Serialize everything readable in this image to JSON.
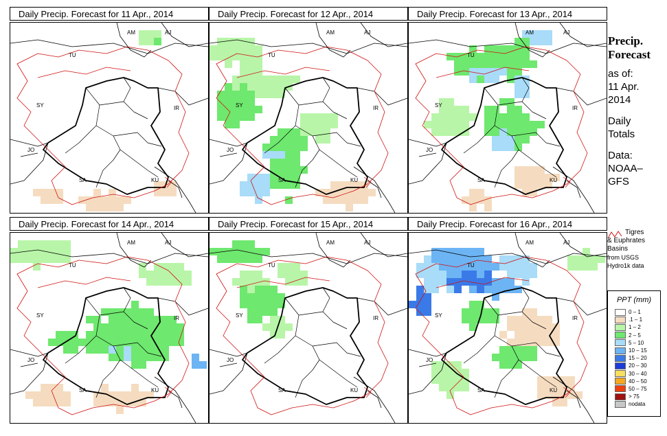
{
  "panels": [
    {
      "title": "Daily Precip. Forecast for  11 Apr., 2014"
    },
    {
      "title": "Daily Precip. Forecast for  12 Apr., 2014"
    },
    {
      "title": "Daily Precip. Forecast for  13 Apr., 2014"
    },
    {
      "title": "Daily Precip. Forecast for  14 Apr., 2014"
    },
    {
      "title": "Daily Precip. Forecast for  15 Apr., 2014"
    },
    {
      "title": "Daily Precip. Forecast for  16 Apr., 2014"
    }
  ],
  "map_labels": [
    "AM",
    "AJ",
    "TU",
    "SY",
    "IR",
    "JO",
    "SA",
    "KU"
  ],
  "sidebar": {
    "heading1": "Precip.",
    "heading2": "Forecast",
    "asof": "as of:",
    "date1": "11 Apr.",
    "date2": "2014",
    "totals1": "Daily",
    "totals2": "Totals",
    "data1": "Data:",
    "data2": "NOAA–",
    "data3": "GFS"
  },
  "basin_legend": {
    "line1": "Tigres",
    "line2": "& Euphrates",
    "line3": "Basins",
    "line4": "from USGS",
    "line5": "Hydro1k data",
    "line_color": "#d01010"
  },
  "ppt_legend": {
    "title": "PPT (mm)",
    "items": [
      {
        "label": "0 – 1",
        "color": "#ffffff"
      },
      {
        "label": ".1 – 1",
        "color": "#f5dcc0"
      },
      {
        "label": "1 – 2",
        "color": "#b8f5a8"
      },
      {
        "label": "2 – 5",
        "color": "#6ee86e"
      },
      {
        "label": "5 – 10",
        "color": "#a8dcf8"
      },
      {
        "label": "10 – 15",
        "color": "#6cb4f4"
      },
      {
        "label": "15 – 20",
        "color": "#3a7ae8"
      },
      {
        "label": "20 – 30",
        "color": "#1c3cd8"
      },
      {
        "label": "30 – 40",
        "color": "#f8e060"
      },
      {
        "label": "40 – 50",
        "color": "#f8a820"
      },
      {
        "label": "50 – 75",
        "color": "#f04010"
      },
      {
        "label": "> 75",
        "color": "#a01010"
      },
      {
        "label": "nodata",
        "color": "#c8c8c8"
      }
    ]
  }
}
